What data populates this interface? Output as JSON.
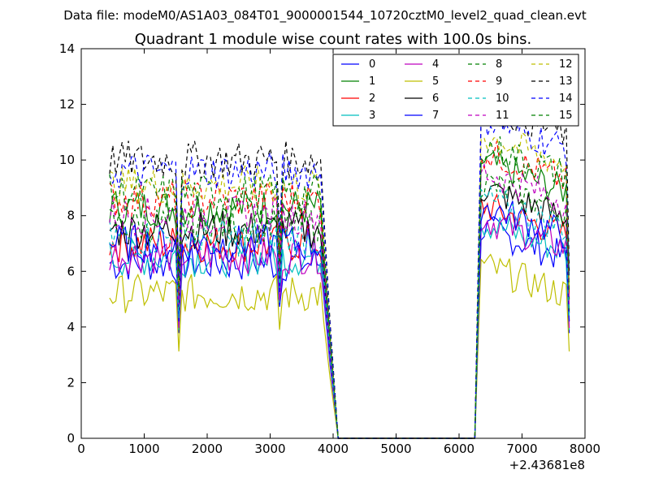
{
  "chart_data": {
    "type": "line",
    "suptitle": "Data file: modeM0/AS1A03_084T01_9000001544_10720cztM0_level2_quad_clean.evt",
    "title": "Quadrant 1 module wise count rates with 100.0s bins.",
    "xlabel": "",
    "ylabel": "",
    "x_offset_label": "+2.43681e8",
    "xlim": [
      0,
      8000
    ],
    "ylim": [
      0,
      14
    ],
    "xticks": [
      "0",
      "1000",
      "2000",
      "3000",
      "4000",
      "5000",
      "6000",
      "7000",
      "8000"
    ],
    "yticks": [
      "0",
      "2",
      "4",
      "6",
      "8",
      "10",
      "12",
      "14"
    ],
    "x_segments": {
      "seg1_start": 450,
      "seg1_end": 4000,
      "gap_start": 4000,
      "gap_end": 6250,
      "seg2_start": 6250,
      "seg2_end": 7750
    },
    "series": [
      {
        "name": "0",
        "color": "#0000ff",
        "dash": "solid",
        "level": 6.3
      },
      {
        "name": "1",
        "color": "#008000",
        "dash": "solid",
        "level": 8.3
      },
      {
        "name": "2",
        "color": "#ff0000",
        "dash": "solid",
        "level": 7.0
      },
      {
        "name": "3",
        "color": "#00bfbf",
        "dash": "solid",
        "level": 6.5
      },
      {
        "name": "4",
        "color": "#bf00bf",
        "dash": "solid",
        "level": 6.6
      },
      {
        "name": "5",
        "color": "#bfbf00",
        "dash": "solid",
        "level": 5.2
      },
      {
        "name": "6",
        "color": "#000000",
        "dash": "solid",
        "level": 7.5
      },
      {
        "name": "7",
        "color": "#0000ff",
        "dash": "solid",
        "level": 7.0
      },
      {
        "name": "8",
        "color": "#008000",
        "dash": "dashed",
        "level": 7.7
      },
      {
        "name": "9",
        "color": "#ff0000",
        "dash": "dashed",
        "level": 8.6
      },
      {
        "name": "10",
        "color": "#00bfbf",
        "dash": "dashed",
        "level": 7.2
      },
      {
        "name": "11",
        "color": "#bf00bf",
        "dash": "dashed",
        "level": 8.0
      },
      {
        "name": "12",
        "color": "#bfbf00",
        "dash": "dashed",
        "level": 9.1
      },
      {
        "name": "13",
        "color": "#000000",
        "dash": "dashed",
        "level": 10.0
      },
      {
        "name": "14",
        "color": "#0000ff",
        "dash": "dashed",
        "level": 9.6
      },
      {
        "name": "15",
        "color": "#008000",
        "dash": "dashed",
        "level": 8.8
      }
    ],
    "legend_position": "top-right"
  }
}
